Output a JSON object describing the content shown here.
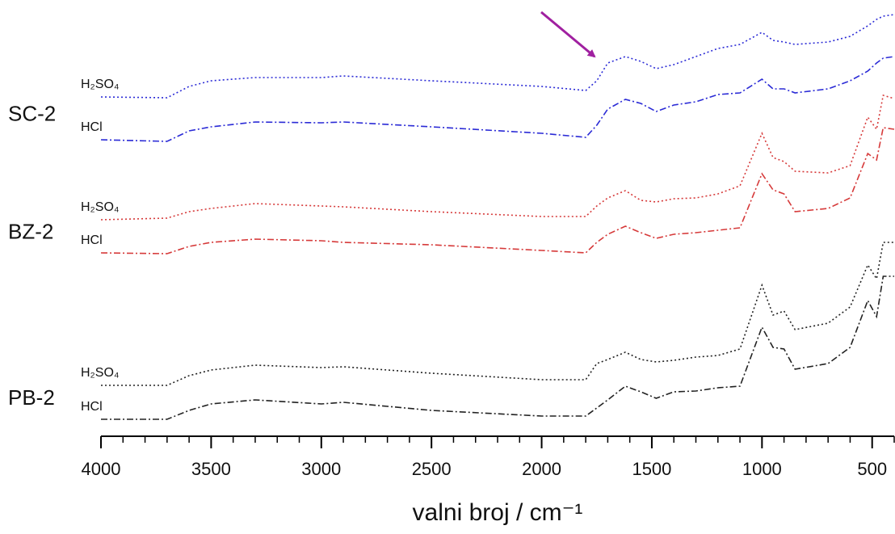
{
  "chart_data": {
    "type": "line",
    "xlabel": "valni broj / cm⁻¹",
    "xlim": [
      4000,
      400
    ],
    "ylim": [
      0,
      106
    ],
    "xticks": [
      4000,
      3500,
      3000,
      2500,
      2000,
      1500,
      1000,
      500
    ],
    "xminorticks": [
      3900,
      3800,
      3700,
      3600,
      3400,
      3300,
      3200,
      3100,
      2900,
      2800,
      2700,
      2600,
      2400,
      2300,
      2200,
      2100,
      1900,
      1800,
      1700,
      1600,
      1400,
      1300,
      1200,
      1100,
      900,
      800,
      700,
      600,
      400
    ],
    "x": [
      4000,
      3700,
      3600,
      3500,
      3300,
      3000,
      2900,
      2500,
      2000,
      1800,
      1750,
      1700,
      1620,
      1550,
      1480,
      1400,
      1300,
      1200,
      1100,
      1000,
      950,
      900,
      850,
      700,
      600,
      520,
      480,
      450,
      400
    ],
    "groups": [
      {
        "name": "SC-2",
        "series": [
          {
            "name": "H₂SO₄",
            "color": "#2b2bd6",
            "style": "dotted",
            "values": [
              84,
              83.8,
              86.6,
              88,
              88.8,
              88.8,
              89.2,
              88,
              86.6,
              85.6,
              88,
              92.4,
              94,
              92.8,
              91,
              92,
              94,
              96,
              97,
              100,
              98,
              97.6,
              97,
              97.6,
              99,
              101.6,
              103.2,
              104,
              104.4
            ]
          },
          {
            "name": "HCl",
            "color": "#2b2bd6",
            "style": "dashdot",
            "values": [
              73.4,
              73,
              75.6,
              76.6,
              77.8,
              77.6,
              77.8,
              76.6,
              75,
              74,
              77,
              81,
              83.4,
              82.4,
              80.4,
              82,
              82.8,
              84.6,
              85,
              88.4,
              86,
              86,
              85,
              86,
              88,
              90.4,
              92.4,
              93.6,
              94
            ]
          }
        ]
      },
      {
        "name": "BZ-2",
        "series": [
          {
            "name": "H₂SO₄",
            "color": "#d63a3a",
            "style": "dotted",
            "values": [
              53.6,
              54,
              55.6,
              56.4,
              57.6,
              57,
              56.8,
              55.6,
              54.4,
              54.4,
              57,
              59,
              60.8,
              58.4,
              58,
              58.8,
              59,
              60,
              62,
              75,
              69,
              68,
              65.6,
              65.2,
              67,
              79,
              76,
              84.4,
              83.6
            ]
          },
          {
            "name": "HCl",
            "color": "#d63a3a",
            "style": "dashdot",
            "values": [
              45.4,
              45.2,
              47,
              48,
              48.8,
              48.4,
              48,
              47.4,
              46,
              45.4,
              48,
              50,
              52,
              50.4,
              49,
              50,
              50.4,
              51,
              51.6,
              65,
              61,
              60,
              55.6,
              56.4,
              59,
              70,
              68.4,
              76.4,
              76
            ]
          }
        ]
      },
      {
        "name": "PB-2",
        "series": [
          {
            "name": "H₂SO₄",
            "color": "#222222",
            "style": "dotted",
            "values": [
              12.6,
              12.6,
              15,
              16.4,
              17.6,
              17,
              17.2,
              15.6,
              14,
              14,
              18,
              19,
              20.8,
              19,
              18.4,
              18.8,
              19.6,
              20,
              21.6,
              37.4,
              30,
              31,
              26.4,
              28,
              32,
              42.4,
              39,
              48,
              48
            ]
          },
          {
            "name": "HCl",
            "color": "#222222",
            "style": "dashdot",
            "values": [
              4.2,
              4.2,
              6.4,
              8,
              9,
              8,
              8.4,
              6.4,
              5,
              5,
              7,
              9,
              12.4,
              11,
              9.4,
              11,
              11.2,
              12,
              12.4,
              27,
              22,
              21.6,
              16.6,
              18,
              22,
              33.6,
              29.6,
              39.6,
              39.6
            ]
          }
        ]
      }
    ]
  }
}
